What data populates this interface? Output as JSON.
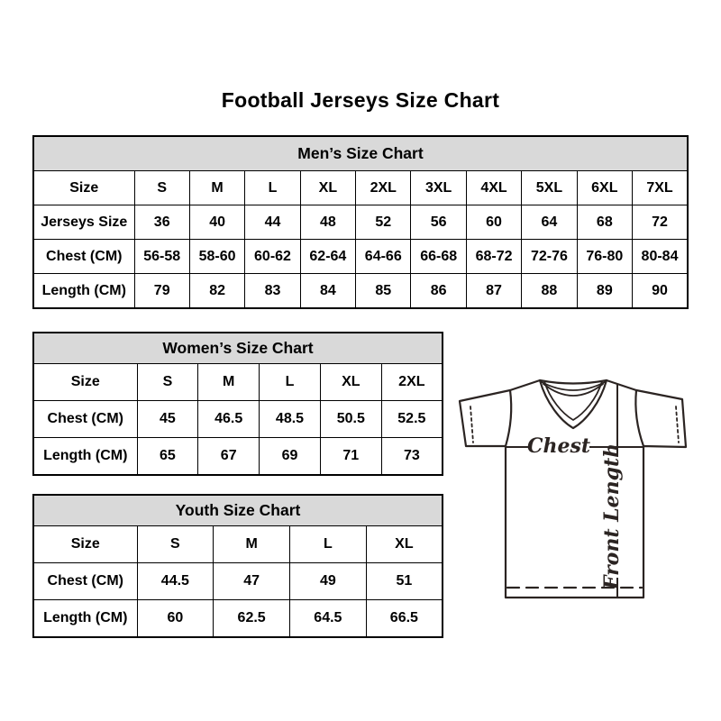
{
  "title": "Football Jerseys Size Chart",
  "colors": {
    "header_bg": "#d9d9d9",
    "border": "#000000",
    "text": "#000000",
    "diagram_stroke": "#2b2422"
  },
  "tables": {
    "mens": {
      "title": "Men’s Size Chart",
      "rows": [
        [
          "Size",
          "S",
          "M",
          "L",
          "XL",
          "2XL",
          "3XL",
          "4XL",
          "5XL",
          "6XL",
          "7XL"
        ],
        [
          "Jerseys Size",
          "36",
          "40",
          "44",
          "48",
          "52",
          "56",
          "60",
          "64",
          "68",
          "72"
        ],
        [
          "Chest (CM)",
          "56-58",
          "58-60",
          "60-62",
          "62-64",
          "64-66",
          "66-68",
          "68-72",
          "72-76",
          "76-80",
          "80-84"
        ],
        [
          "Length (CM)",
          "79",
          "82",
          "83",
          "84",
          "85",
          "86",
          "87",
          "88",
          "89",
          "90"
        ]
      ]
    },
    "womens": {
      "title": "Women’s Size Chart",
      "rows": [
        [
          "Size",
          "S",
          "M",
          "L",
          "XL",
          "2XL"
        ],
        [
          "Chest (CM)",
          "45",
          "46.5",
          "48.5",
          "50.5",
          "52.5"
        ],
        [
          "Length (CM)",
          "65",
          "67",
          "69",
          "71",
          "73"
        ]
      ]
    },
    "youth": {
      "title": "Youth Size Chart",
      "rows": [
        [
          "Size",
          "S",
          "M",
          "L",
          "XL"
        ],
        [
          "Chest (CM)",
          "44.5",
          "47",
          "49",
          "51"
        ],
        [
          "Length (CM)",
          "60",
          "62.5",
          "64.5",
          "66.5"
        ]
      ]
    }
  },
  "diagram": {
    "chest_label": "Chest",
    "front_length_label": "Front Length"
  }
}
